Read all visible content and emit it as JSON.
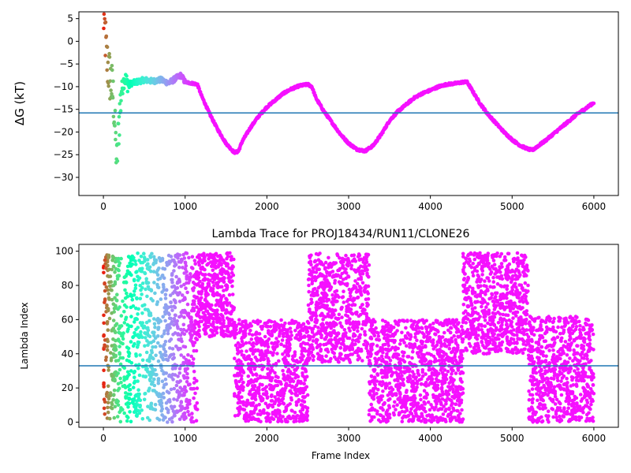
{
  "chart_data": [
    {
      "type": "scatter",
      "title": "",
      "xlabel": "",
      "ylabel": "ΔG (kT)",
      "xlim": [
        -300,
        6300
      ],
      "ylim": [
        -34,
        6.5
      ],
      "xticks": [
        0,
        1000,
        2000,
        3000,
        4000,
        5000,
        6000
      ],
      "yticks": [
        5,
        0,
        -5,
        -10,
        -15,
        -20,
        -25,
        -30
      ],
      "hline": -15.8,
      "hline_color": "#1f77b4",
      "colormap": "rainbow (early frames red → late frames violet)",
      "grid": false,
      "trace": [
        [
          0,
          6
        ],
        [
          20,
          2
        ],
        [
          40,
          -4
        ],
        [
          80,
          -8
        ],
        [
          120,
          -12
        ],
        [
          150,
          -22
        ],
        [
          165,
          -27
        ],
        [
          190,
          -18
        ],
        [
          220,
          -11
        ],
        [
          260,
          -8
        ],
        [
          300,
          -9.5
        ],
        [
          400,
          -9
        ],
        [
          500,
          -8.5
        ],
        [
          600,
          -8.8
        ],
        [
          700,
          -8.5
        ],
        [
          800,
          -9.2
        ],
        [
          900,
          -8
        ],
        [
          950,
          -7.5
        ],
        [
          1000,
          -9
        ],
        [
          1100,
          -9.3
        ],
        [
          1150,
          -9.5
        ],
        [
          1200,
          -12
        ],
        [
          1300,
          -16
        ],
        [
          1400,
          -19.5
        ],
        [
          1500,
          -22.5
        ],
        [
          1600,
          -24.5
        ],
        [
          1650,
          -24.3
        ],
        [
          1700,
          -22
        ],
        [
          1800,
          -19
        ],
        [
          1900,
          -16.5
        ],
        [
          2000,
          -14.5
        ],
        [
          2100,
          -13
        ],
        [
          2200,
          -11.5
        ],
        [
          2300,
          -10.5
        ],
        [
          2400,
          -9.8
        ],
        [
          2500,
          -9.5
        ],
        [
          2550,
          -10
        ],
        [
          2600,
          -12.5
        ],
        [
          2700,
          -15.5
        ],
        [
          2800,
          -18
        ],
        [
          2900,
          -20.5
        ],
        [
          3000,
          -22.5
        ],
        [
          3100,
          -23.8
        ],
        [
          3200,
          -24.2
        ],
        [
          3300,
          -23
        ],
        [
          3400,
          -20.5
        ],
        [
          3500,
          -17.5
        ],
        [
          3600,
          -15.5
        ],
        [
          3700,
          -14
        ],
        [
          3800,
          -12.5
        ],
        [
          3900,
          -11.5
        ],
        [
          4000,
          -10.8
        ],
        [
          4100,
          -10
        ],
        [
          4200,
          -9.5
        ],
        [
          4300,
          -9.3
        ],
        [
          4400,
          -9
        ],
        [
          4450,
          -9
        ],
        [
          4500,
          -10.5
        ],
        [
          4600,
          -13.5
        ],
        [
          4700,
          -16
        ],
        [
          4800,
          -18
        ],
        [
          4900,
          -20
        ],
        [
          5000,
          -21.7
        ],
        [
          5100,
          -23
        ],
        [
          5200,
          -23.8
        ],
        [
          5250,
          -24
        ],
        [
          5300,
          -23.3
        ],
        [
          5400,
          -22
        ],
        [
          5500,
          -20.5
        ],
        [
          5600,
          -19
        ],
        [
          5700,
          -17.5
        ],
        [
          5800,
          -16
        ],
        [
          5900,
          -14.8
        ],
        [
          6000,
          -13.5
        ]
      ]
    },
    {
      "type": "scatter",
      "title": "Lambda Trace for PROJ18434/RUN11/CLONE26",
      "xlabel": "Frame Index",
      "ylabel": "Lambda Index",
      "xlim": [
        -300,
        6300
      ],
      "ylim": [
        -3,
        104
      ],
      "xticks": [
        0,
        1000,
        2000,
        3000,
        4000,
        5000,
        6000
      ],
      "yticks": [
        0,
        20,
        40,
        60,
        80,
        100
      ],
      "hline": 33,
      "hline_color": "#1f77b4",
      "colormap": "rainbow (early frames red → late frames violet)",
      "grid": false,
      "bands": [
        [
          0,
          1150,
          0,
          99
        ],
        [
          1150,
          1600,
          50,
          99
        ],
        [
          1600,
          2500,
          0,
          60
        ],
        [
          2500,
          3250,
          35,
          99
        ],
        [
          3250,
          4400,
          0,
          60
        ],
        [
          4400,
          5200,
          40,
          99
        ],
        [
          5200,
          6000,
          0,
          62
        ]
      ]
    }
  ]
}
